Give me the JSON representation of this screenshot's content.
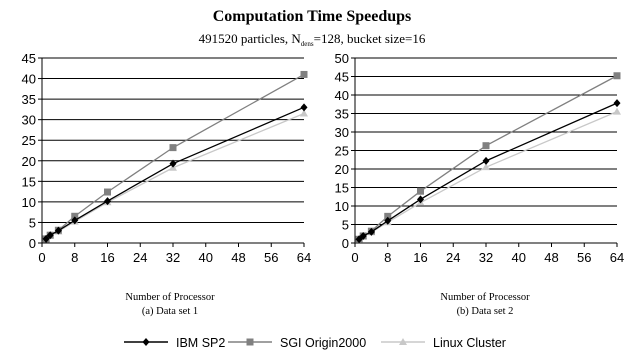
{
  "title": "Computation Time Speedups",
  "subtitle": {
    "prefix": "491520 particles, N",
    "subscript": "dens",
    "suffix": "=128, bucket size=16"
  },
  "legend": {
    "position": "bottom-center",
    "items": [
      {
        "label": "IBM SP2",
        "color": "#000000",
        "marker": "diamond"
      },
      {
        "label": "SGI Origin2000",
        "color": "#808080",
        "marker": "square"
      },
      {
        "label": "Linux Cluster",
        "color": "#c8c8c8",
        "marker": "triangle"
      }
    ]
  },
  "chart_data": [
    {
      "type": "line",
      "xlabel": "Number of Processor",
      "caption": "(a) Data set 1",
      "xlim": [
        0,
        64
      ],
      "ylim": [
        0,
        45
      ],
      "xticks": [
        0,
        8,
        16,
        24,
        32,
        40,
        48,
        56,
        64
      ],
      "yticks": [
        0,
        5,
        10,
        15,
        20,
        25,
        30,
        35,
        40,
        45
      ],
      "grid": "horizontal",
      "x": [
        1,
        2,
        4,
        8,
        16,
        32,
        64
      ],
      "series": [
        {
          "name": "IBM SP2",
          "values": [
            1,
            1.9,
            3,
            5.5,
            10.2,
            19.3,
            33
          ]
        },
        {
          "name": "SGI Origin2000",
          "values": [
            1,
            1.9,
            3.1,
            6.5,
            12.4,
            23.2,
            41
          ]
        },
        {
          "name": "Linux Cluster",
          "values": [
            1,
            1.8,
            2.8,
            5.2,
            9.9,
            18.3,
            31.5
          ]
        }
      ]
    },
    {
      "type": "line",
      "xlabel": "Number of Processor",
      "caption": "(b) Data set 2",
      "xlim": [
        0,
        64
      ],
      "ylim": [
        0,
        50
      ],
      "xticks": [
        0,
        8,
        16,
        24,
        32,
        40,
        48,
        56,
        64
      ],
      "yticks": [
        0,
        5,
        10,
        15,
        20,
        25,
        30,
        35,
        40,
        45,
        50
      ],
      "grid": "horizontal",
      "x": [
        1,
        2,
        4,
        8,
        16,
        32,
        64
      ],
      "series": [
        {
          "name": "IBM SP2",
          "values": [
            1,
            1.9,
            3,
            6,
            11.8,
            22.2,
            37.8
          ]
        },
        {
          "name": "SGI Origin2000",
          "values": [
            1,
            1.9,
            3.2,
            7.2,
            14,
            26.3,
            45.2
          ]
        },
        {
          "name": "Linux Cluster",
          "values": [
            1,
            1.8,
            2.9,
            5.6,
            10.9,
            20.5,
            35.5
          ]
        }
      ]
    }
  ]
}
